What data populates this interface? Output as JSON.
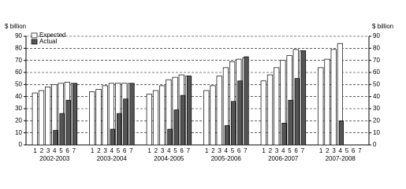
{
  "chart_data": {
    "type": "bar",
    "ylabel": "$ billion",
    "categories": [
      "2002-2003",
      "2003-2004",
      "2004-2005",
      "2005-2006",
      "2006-2007",
      "2007-2008"
    ],
    "estimates": [
      "1",
      "2",
      "3",
      "4",
      "5",
      "6",
      "7"
    ],
    "series": [
      {
        "name": "Expected",
        "color": "#ffffff",
        "values": [
          [
            43,
            45,
            48,
            50,
            51,
            52,
            51
          ],
          [
            44,
            46,
            49,
            51,
            51,
            51,
            51
          ],
          [
            42,
            45,
            49,
            54,
            56,
            58,
            57
          ],
          [
            45,
            49,
            57,
            64,
            69,
            71,
            72
          ],
          [
            53,
            58,
            64,
            70,
            74,
            79,
            78
          ],
          [
            64,
            71,
            79,
            84,
            null,
            null,
            null
          ]
        ]
      },
      {
        "name": "Actual",
        "color": "#555555",
        "values": [
          [
            null,
            null,
            null,
            12,
            26,
            37,
            51
          ],
          [
            null,
            null,
            null,
            13,
            26,
            38,
            51
          ],
          [
            null,
            null,
            null,
            13,
            29,
            41,
            57
          ],
          [
            null,
            null,
            null,
            16,
            36,
            53,
            73
          ],
          [
            null,
            null,
            null,
            18,
            37,
            55,
            78
          ],
          [
            null,
            null,
            null,
            20,
            null,
            null,
            null
          ]
        ]
      }
    ],
    "ylim": [
      0,
      90
    ],
    "yticks": [
      0,
      10,
      20,
      30,
      40,
      50,
      60,
      70,
      80,
      90
    ],
    "grid": true
  }
}
